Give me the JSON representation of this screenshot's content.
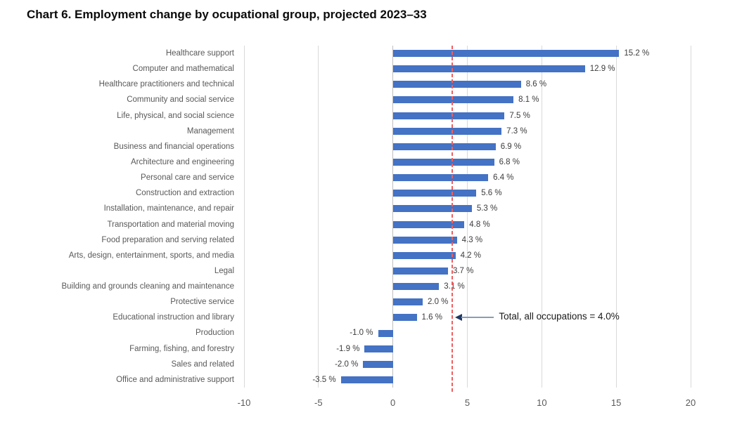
{
  "title": "Chart 6. Employment change by ocupational group, projected 2023–33",
  "colors": {
    "bar": "#4472C4",
    "gridline": "#D9D9D9",
    "zero_line": "#BFBFBF",
    "reference_line": "#EF5F5F",
    "arrow_line": "#8C9DB5",
    "arrow_head": "#1F3864",
    "category_text": "#595959",
    "value_text": "#3C3C3C",
    "tick_text": "#595959",
    "annotation_text": "#1A1A1A",
    "title_text": "#0B0B0B"
  },
  "chart_data": {
    "type": "bar",
    "orientation": "horizontal",
    "title": "Chart 6. Employment change by ocupational group, projected 2023–33",
    "categories": [
      "Healthcare support",
      "Computer and mathematical",
      "Healthcare practitioners and technical",
      "Community and social service",
      "Life, physical, and social science",
      "Management",
      "Business and financial operations",
      "Architecture and engineering",
      "Personal care and service",
      "Construction and extraction",
      "Installation, maintenance, and repair",
      "Transportation and material moving",
      "Food preparation and serving related",
      "Arts, design, entertainment, sports, and media",
      "Legal",
      "Building and grounds cleaning and maintenance",
      "Protective service",
      "Educational instruction and library",
      "Production",
      "Farming, fishing, and forestry",
      "Sales and related",
      "Office and administrative support"
    ],
    "values": [
      15.2,
      12.9,
      8.6,
      8.1,
      7.5,
      7.3,
      6.9,
      6.8,
      6.4,
      5.6,
      5.3,
      4.8,
      4.3,
      4.2,
      3.7,
      3.1,
      2.0,
      1.6,
      -1.0,
      -1.9,
      -2.0,
      -3.5
    ],
    "value_labels": [
      "15.2 %",
      "12.9 %",
      "8.6 %",
      "8.1 %",
      "7.5 %",
      "7.3 %",
      "6.9 %",
      "6.8 %",
      "6.4 %",
      "5.6 %",
      "5.3 %",
      "4.8 %",
      "4.3 %",
      "4.2 %",
      "3.7 %",
      "3.1 %",
      "2.0 %",
      "1.6 %",
      "-1.0 %",
      "-1.9 %",
      "-2.0 %",
      "-3.5 %"
    ],
    "x_ticks": [
      -10,
      -5,
      0,
      5,
      10,
      15,
      20
    ],
    "xlim": [
      -10,
      20
    ],
    "xlabel": "",
    "ylabel": "",
    "grid": true,
    "legend": false,
    "reference_line": {
      "value": 4.0,
      "label": "Total, all occupations = 4.0%"
    }
  }
}
